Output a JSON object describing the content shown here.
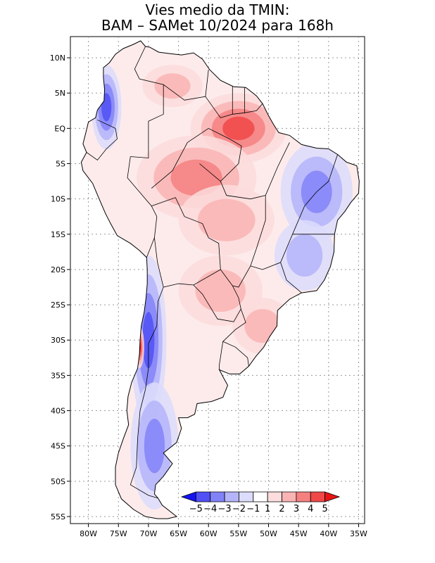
{
  "title": {
    "line1": "Vies medio da TMIN:",
    "line2": "BAM – SAMet 10/2024  para 168h"
  },
  "chart_data": {
    "type": "heatmap",
    "title": "Vies medio da TMIN: BAM – SAMet 10/2024 para 168h",
    "xlabel": "",
    "ylabel": "",
    "x_range": [
      -83,
      -34
    ],
    "y_range": [
      -56,
      13
    ],
    "x_ticks": [
      {
        "value": -80,
        "label": "80W"
      },
      {
        "value": -75,
        "label": "75W"
      },
      {
        "value": -70,
        "label": "70W"
      },
      {
        "value": -65,
        "label": "65W"
      },
      {
        "value": -60,
        "label": "60W"
      },
      {
        "value": -55,
        "label": "55W"
      },
      {
        "value": -50,
        "label": "50W"
      },
      {
        "value": -45,
        "label": "45W"
      },
      {
        "value": -40,
        "label": "40W"
      },
      {
        "value": -35,
        "label": "35W"
      }
    ],
    "y_ticks": [
      {
        "value": 10,
        "label": "10N"
      },
      {
        "value": 5,
        "label": "5N"
      },
      {
        "value": 0,
        "label": "EQ"
      },
      {
        "value": -5,
        "label": "5S"
      },
      {
        "value": -10,
        "label": "10S"
      },
      {
        "value": -15,
        "label": "15S"
      },
      {
        "value": -20,
        "label": "20S"
      },
      {
        "value": -25,
        "label": "25S"
      },
      {
        "value": -30,
        "label": "30S"
      },
      {
        "value": -35,
        "label": "35S"
      },
      {
        "value": -40,
        "label": "40S"
      },
      {
        "value": -45,
        "label": "45S"
      },
      {
        "value": -50,
        "label": "50S"
      },
      {
        "value": -55,
        "label": "55S"
      }
    ],
    "grid": true,
    "colorbar": {
      "placement": "bottom-right",
      "labels": [
        "−5",
        "−4",
        "−3",
        "−2",
        "−1",
        "1",
        "2",
        "3",
        "4",
        "5"
      ],
      "colors": [
        "#1414f0",
        "#5050f5",
        "#8282f8",
        "#b4b4fa",
        "#dcdcfc",
        "#ffffff",
        "#fcdcdc",
        "#fab4b4",
        "#f58080",
        "#f04848",
        "#e81414"
      ]
    },
    "regions": [
      {
        "name": "amazon-north-warm",
        "lon": -55,
        "lat": 0,
        "bias": 4
      },
      {
        "name": "amazon-south-warm",
        "lon": -62,
        "lat": -7,
        "bias": 3
      },
      {
        "name": "central-brazil-warm",
        "lon": -57,
        "lat": -13,
        "bias": 2
      },
      {
        "name": "paraguay-warm",
        "lon": -58,
        "lat": -23,
        "bias": 2
      },
      {
        "name": "south-brazil-warm",
        "lon": -51,
        "lat": -28,
        "bias": 2
      },
      {
        "name": "northeast-brazil-cool",
        "lon": -42,
        "lat": -9,
        "bias": -3
      },
      {
        "name": "southeast-brazil-cool",
        "lon": -44,
        "lat": -18,
        "bias": -2
      },
      {
        "name": "andes-chile-cool",
        "lon": -70,
        "lat": -30,
        "bias": -4
      },
      {
        "name": "patagonia-cool",
        "lon": -69,
        "lat": -45,
        "bias": -3
      },
      {
        "name": "chile-coast-warm",
        "lon": -71.5,
        "lat": -31,
        "bias": 5
      },
      {
        "name": "venezuela-warm",
        "lon": -66,
        "lat": 6,
        "bias": 2
      },
      {
        "name": "colombia-pacific-cool",
        "lon": -77,
        "lat": 3,
        "bias": -4
      }
    ]
  }
}
